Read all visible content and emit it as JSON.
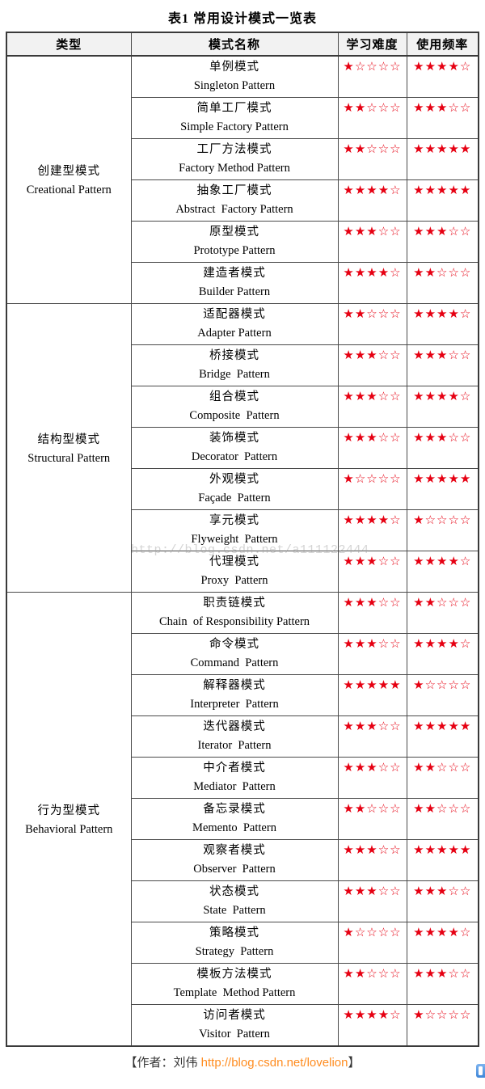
{
  "title": "表1 常用设计模式一览表",
  "stars": {
    "filled": "★",
    "empty": "☆",
    "max": 5
  },
  "colors": {
    "star_red": "#e60012",
    "link_orange": "#ff8c1f",
    "header_bg": "#f2f2f2",
    "border_dark": "#3a3a3a",
    "watermark_gray": "#a0a0a0",
    "corner_icon_blue": "#3f86d8"
  },
  "watermark": "http://blog.csdn.net/a111122444",
  "footer": {
    "prefix": "【作者：刘伟 ",
    "link": "http://blog.csdn.net/lovelion",
    "suffix": "】"
  },
  "table": {
    "headers": [
      "类型",
      "模式名称",
      "学习难度",
      "使用频率"
    ],
    "groups": [
      {
        "type_zh": "创建型模式",
        "type_en": "Creational Pattern",
        "rows": [
          {
            "name_zh": "单例模式",
            "name_en": "Singleton Pattern",
            "difficulty": 1,
            "frequency": 4
          },
          {
            "name_zh": "简单工厂模式",
            "name_en": "Simple Factory Pattern",
            "difficulty": 2,
            "frequency": 3
          },
          {
            "name_zh": "工厂方法模式",
            "name_en": "Factory Method Pattern",
            "difficulty": 2,
            "frequency": 5
          },
          {
            "name_zh": "抽象工厂模式",
            "name_en": "Abstract  Factory Pattern",
            "difficulty": 4,
            "frequency": 5
          },
          {
            "name_zh": "原型模式",
            "name_en": "Prototype Pattern",
            "difficulty": 3,
            "frequency": 3
          },
          {
            "name_zh": "建造者模式",
            "name_en": "Builder Pattern",
            "difficulty": 4,
            "frequency": 2
          }
        ]
      },
      {
        "type_zh": "结构型模式",
        "type_en": "Structural Pattern",
        "rows": [
          {
            "name_zh": "适配器模式",
            "name_en": "Adapter Pattern",
            "difficulty": 2,
            "frequency": 4
          },
          {
            "name_zh": "桥接模式",
            "name_en": "Bridge  Pattern",
            "difficulty": 3,
            "frequency": 3
          },
          {
            "name_zh": "组合模式",
            "name_en": "Composite  Pattern",
            "difficulty": 3,
            "frequency": 4
          },
          {
            "name_zh": "装饰模式",
            "name_en": "Decorator  Pattern",
            "difficulty": 3,
            "frequency": 3
          },
          {
            "name_zh": "外观模式",
            "name_en": "Façade  Pattern",
            "difficulty": 1,
            "frequency": 5
          },
          {
            "name_zh": "享元模式",
            "name_en": "Flyweight  Pattern",
            "difficulty": 4,
            "frequency": 1
          },
          {
            "name_zh": "代理模式",
            "name_en": "Proxy  Pattern",
            "difficulty": 3,
            "frequency": 4
          }
        ]
      },
      {
        "type_zh": "行为型模式",
        "type_en": "Behavioral Pattern",
        "rows": [
          {
            "name_zh": "职责链模式",
            "name_en": "Chain  of Responsibility Pattern",
            "difficulty": 3,
            "frequency": 2
          },
          {
            "name_zh": "命令模式",
            "name_en": "Command  Pattern",
            "difficulty": 3,
            "frequency": 4
          },
          {
            "name_zh": "解释器模式",
            "name_en": "Interpreter  Pattern",
            "difficulty": 5,
            "frequency": 1
          },
          {
            "name_zh": "迭代器模式",
            "name_en": "Iterator  Pattern",
            "difficulty": 3,
            "frequency": 5
          },
          {
            "name_zh": "中介者模式",
            "name_en": "Mediator  Pattern",
            "difficulty": 3,
            "frequency": 2
          },
          {
            "name_zh": "备忘录模式",
            "name_en": "Memento  Pattern",
            "difficulty": 2,
            "frequency": 2
          },
          {
            "name_zh": "观察者模式",
            "name_en": "Observer  Pattern",
            "difficulty": 3,
            "frequency": 5
          },
          {
            "name_zh": "状态模式",
            "name_en": "State  Pattern",
            "difficulty": 3,
            "frequency": 3
          },
          {
            "name_zh": "策略模式",
            "name_en": "Strategy  Pattern",
            "difficulty": 1,
            "frequency": 4
          },
          {
            "name_zh": "模板方法模式",
            "name_en": "Template  Method Pattern",
            "difficulty": 2,
            "frequency": 3
          },
          {
            "name_zh": "访问者模式",
            "name_en": "Visitor  Pattern",
            "difficulty": 4,
            "frequency": 1
          }
        ]
      }
    ]
  }
}
